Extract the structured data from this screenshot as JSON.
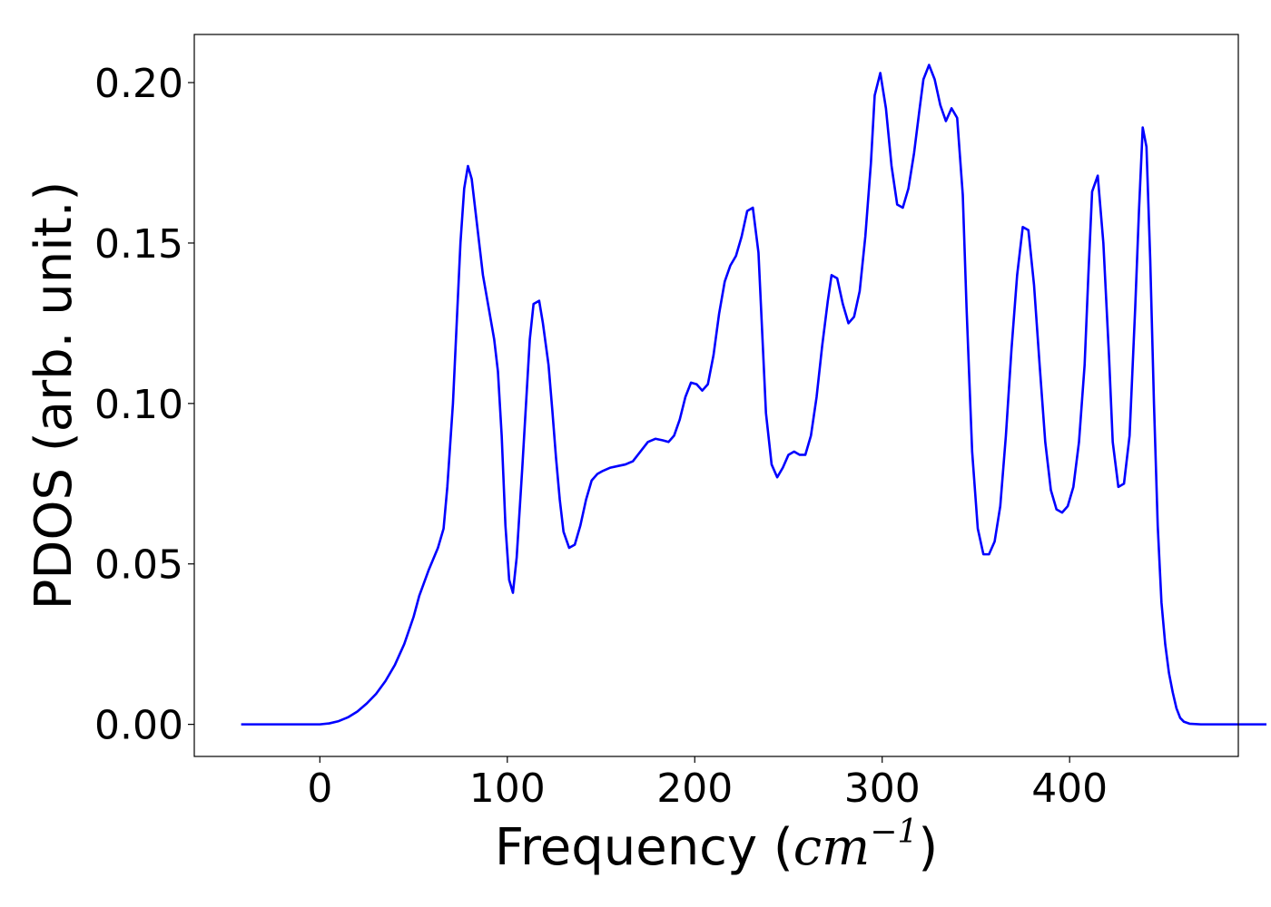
{
  "chart_data": {
    "type": "line",
    "title": "",
    "xlabel": "Frequency (",
    "xlabel_unit": "cm",
    "xlabel_exponent": "−1",
    "xlabel_close": ")",
    "ylabel": "PDOS (arb. unit.)",
    "xlim": [
      -67,
      490
    ],
    "ylim": [
      -0.01,
      0.215
    ],
    "xticks": [
      0,
      100,
      200,
      300,
      400
    ],
    "xtick_labels": [
      "0",
      "100",
      "200",
      "300",
      "400"
    ],
    "yticks": [
      0.0,
      0.05,
      0.1,
      0.15,
      0.2
    ],
    "ytick_labels": [
      "0.00",
      "0.05",
      "0.10",
      "0.15",
      "0.20"
    ],
    "grid": false,
    "legend": "none",
    "colors": {
      "line": "#0000ff",
      "axes": "#000000",
      "background": "#ffffff"
    },
    "series": [
      {
        "points": [
          [
            -42,
            0
          ],
          [
            0,
            0
          ],
          [
            5,
            0.0003
          ],
          [
            10,
            0.001
          ],
          [
            15,
            0.0022
          ],
          [
            20,
            0.004
          ],
          [
            25,
            0.0065
          ],
          [
            30,
            0.0095
          ],
          [
            35,
            0.0135
          ],
          [
            40,
            0.0185
          ],
          [
            45,
            0.025
          ],
          [
            50,
            0.0335
          ],
          [
            53,
            0.04
          ],
          [
            58,
            0.048
          ],
          [
            63,
            0.055
          ],
          [
            66,
            0.061
          ],
          [
            68,
            0.074
          ],
          [
            71,
            0.1
          ],
          [
            73,
            0.125
          ],
          [
            75,
            0.15
          ],
          [
            77,
            0.167
          ],
          [
            79,
            0.174
          ],
          [
            81,
            0.17
          ],
          [
            83,
            0.16
          ],
          [
            85,
            0.15
          ],
          [
            87,
            0.14
          ],
          [
            90,
            0.13
          ],
          [
            93,
            0.12
          ],
          [
            95,
            0.11
          ],
          [
            97,
            0.09
          ],
          [
            99,
            0.062
          ],
          [
            101,
            0.045
          ],
          [
            103,
            0.041
          ],
          [
            105,
            0.052
          ],
          [
            108,
            0.08
          ],
          [
            110,
            0.1
          ],
          [
            112,
            0.12
          ],
          [
            114,
            0.131
          ],
          [
            117,
            0.132
          ],
          [
            119,
            0.125
          ],
          [
            122,
            0.112
          ],
          [
            124,
            0.098
          ],
          [
            126,
            0.083
          ],
          [
            128,
            0.07
          ],
          [
            130,
            0.06
          ],
          [
            133,
            0.055
          ],
          [
            136,
            0.056
          ],
          [
            139,
            0.062
          ],
          [
            142,
            0.07
          ],
          [
            145,
            0.076
          ],
          [
            148,
            0.078
          ],
          [
            151,
            0.079
          ],
          [
            155,
            0.08
          ],
          [
            159,
            0.0805
          ],
          [
            163,
            0.081
          ],
          [
            167,
            0.082
          ],
          [
            171,
            0.085
          ],
          [
            175,
            0.088
          ],
          [
            179,
            0.089
          ],
          [
            183,
            0.0885
          ],
          [
            186,
            0.088
          ],
          [
            189,
            0.09
          ],
          [
            192,
            0.095
          ],
          [
            195,
            0.102
          ],
          [
            198,
            0.1065
          ],
          [
            201,
            0.106
          ],
          [
            204,
            0.104
          ],
          [
            207,
            0.106
          ],
          [
            210,
            0.115
          ],
          [
            213,
            0.128
          ],
          [
            216,
            0.138
          ],
          [
            219,
            0.143
          ],
          [
            222,
            0.146
          ],
          [
            225,
            0.152
          ],
          [
            228,
            0.16
          ],
          [
            231,
            0.161
          ],
          [
            234,
            0.147
          ],
          [
            238,
            0.097
          ],
          [
            241,
            0.081
          ],
          [
            244,
            0.077
          ],
          [
            247,
            0.08
          ],
          [
            250,
            0.084
          ],
          [
            253,
            0.085
          ],
          [
            256,
            0.084
          ],
          [
            259,
            0.084
          ],
          [
            262,
            0.09
          ],
          [
            265,
            0.102
          ],
          [
            268,
            0.118
          ],
          [
            271,
            0.132
          ],
          [
            273,
            0.14
          ],
          [
            276,
            0.139
          ],
          [
            279,
            0.131
          ],
          [
            282,
            0.125
          ],
          [
            285,
            0.127
          ],
          [
            288,
            0.135
          ],
          [
            291,
            0.152
          ],
          [
            294,
            0.175
          ],
          [
            296,
            0.196
          ],
          [
            299,
            0.203
          ],
          [
            302,
            0.192
          ],
          [
            305,
            0.174
          ],
          [
            308,
            0.162
          ],
          [
            311,
            0.161
          ],
          [
            314,
            0.167
          ],
          [
            317,
            0.178
          ],
          [
            320,
            0.192
          ],
          [
            322,
            0.201
          ],
          [
            325,
            0.2055
          ],
          [
            328,
            0.201
          ],
          [
            331,
            0.193
          ],
          [
            334,
            0.188
          ],
          [
            337,
            0.192
          ],
          [
            340,
            0.189
          ],
          [
            343,
            0.165
          ],
          [
            345,
            0.13
          ],
          [
            348,
            0.085
          ],
          [
            351,
            0.061
          ],
          [
            354,
            0.053
          ],
          [
            357,
            0.053
          ],
          [
            360,
            0.057
          ],
          [
            363,
            0.068
          ],
          [
            366,
            0.09
          ],
          [
            369,
            0.117
          ],
          [
            372,
            0.14
          ],
          [
            375,
            0.155
          ],
          [
            378,
            0.154
          ],
          [
            381,
            0.137
          ],
          [
            384,
            0.112
          ],
          [
            387,
            0.088
          ],
          [
            390,
            0.073
          ],
          [
            393,
            0.067
          ],
          [
            396,
            0.066
          ],
          [
            399,
            0.068
          ],
          [
            402,
            0.074
          ],
          [
            405,
            0.088
          ],
          [
            408,
            0.112
          ],
          [
            410,
            0.14
          ],
          [
            412,
            0.166
          ],
          [
            415,
            0.171
          ],
          [
            418,
            0.15
          ],
          [
            421,
            0.115
          ],
          [
            423,
            0.088
          ],
          [
            426,
            0.074
          ],
          [
            429,
            0.075
          ],
          [
            432,
            0.09
          ],
          [
            435,
            0.13
          ],
          [
            437,
            0.16
          ],
          [
            439,
            0.186
          ],
          [
            441,
            0.18
          ],
          [
            443,
            0.145
          ],
          [
            445,
            0.1
          ],
          [
            447,
            0.062
          ],
          [
            449,
            0.038
          ],
          [
            451,
            0.025
          ],
          [
            453,
            0.016
          ],
          [
            455,
            0.01
          ],
          [
            457,
            0.005
          ],
          [
            459,
            0.002
          ],
          [
            461,
            0.0008
          ],
          [
            464,
            0.0002
          ],
          [
            470,
            0
          ],
          [
            480,
            0
          ],
          [
            505,
            0
          ]
        ]
      }
    ]
  }
}
